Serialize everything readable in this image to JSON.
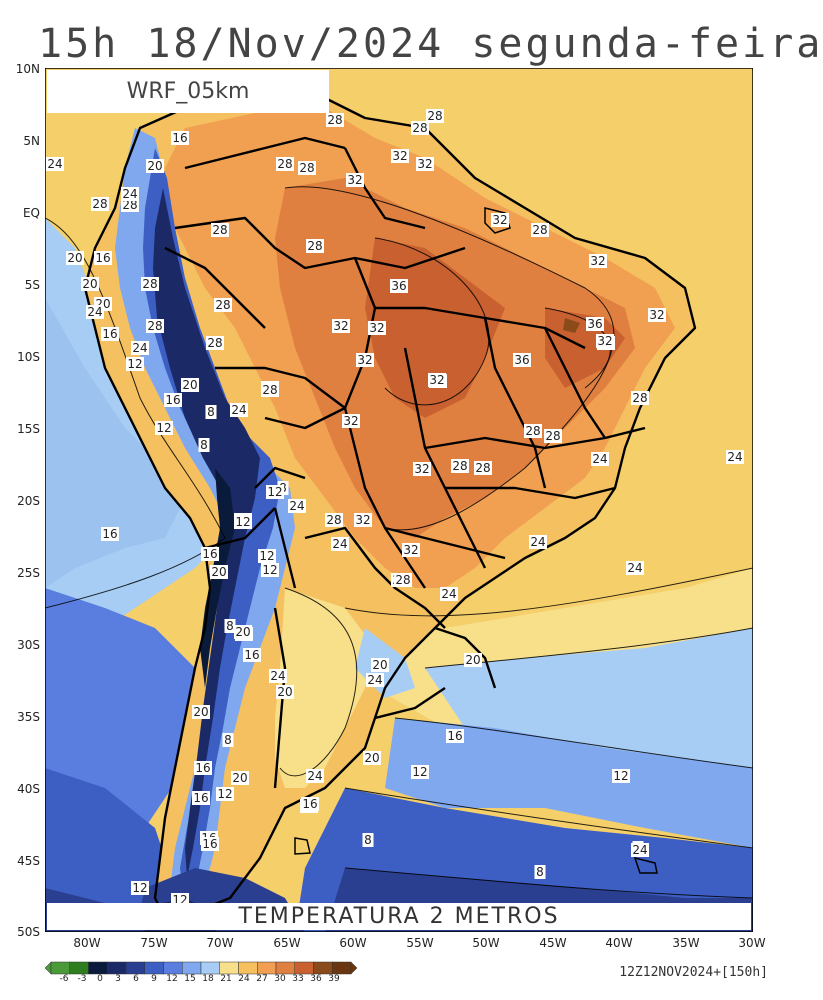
{
  "header": {
    "title": "15h 18/Nov/2024 segunda-feira"
  },
  "model_label": "WRF_05km",
  "variable_label": "TEMPERATURA 2 METROS",
  "run_info": "12Z12NOV2024+[150h]",
  "axes": {
    "latitudes": [
      "10N",
      "5N",
      "EQ",
      "5S",
      "10S",
      "15S",
      "20S",
      "25S",
      "30S",
      "35S",
      "40S",
      "45S",
      "50S"
    ],
    "longitudes": [
      "80W",
      "75W",
      "70W",
      "65W",
      "60W",
      "55W",
      "50W",
      "45W",
      "40W",
      "35W",
      "30W"
    ]
  },
  "colorbar": {
    "ticks": [
      "-6",
      "-3",
      "0",
      "3",
      "6",
      "9",
      "12",
      "15",
      "18",
      "21",
      "24",
      "27",
      "30",
      "33",
      "36",
      "39"
    ],
    "colors": [
      "#4a9a3a",
      "#2e7d1e",
      "#0a1a3a",
      "#1b2a66",
      "#2a3f8f",
      "#3d5fc4",
      "#5a7ee0",
      "#7fa8ee",
      "#a7cdf4",
      "#f8e08a",
      "#f5c060",
      "#f0a050",
      "#e08040",
      "#c96030",
      "#8a4a1a",
      "#6a3510"
    ]
  },
  "contour_labels": [
    {
      "t": "28"
    },
    {
      "t": "28"
    },
    {
      "t": "28"
    },
    {
      "t": "16"
    },
    {
      "t": "20"
    },
    {
      "t": "24"
    },
    {
      "t": "28"
    },
    {
      "t": "28"
    },
    {
      "t": "32"
    },
    {
      "t": "32"
    },
    {
      "t": "28"
    },
    {
      "t": "28"
    },
    {
      "t": "32"
    },
    {
      "t": "28"
    },
    {
      "t": "32"
    },
    {
      "t": "28"
    },
    {
      "t": "24"
    },
    {
      "t": "28"
    },
    {
      "t": "20"
    },
    {
      "t": "16"
    },
    {
      "t": "20"
    },
    {
      "t": "28"
    },
    {
      "t": "28"
    },
    {
      "t": "36"
    },
    {
      "t": "32"
    },
    {
      "t": "20"
    },
    {
      "t": "24"
    },
    {
      "t": "28"
    },
    {
      "t": "32"
    },
    {
      "t": "32"
    },
    {
      "t": "36"
    },
    {
      "t": "32"
    },
    {
      "t": "32"
    },
    {
      "t": "16"
    },
    {
      "t": "28"
    },
    {
      "t": "24"
    },
    {
      "t": "32"
    },
    {
      "t": "12"
    },
    {
      "t": "28"
    },
    {
      "t": "32"
    },
    {
      "t": "36"
    },
    {
      "t": "32"
    },
    {
      "t": "20"
    },
    {
      "t": "28"
    },
    {
      "t": "16"
    },
    {
      "t": "8"
    },
    {
      "t": "24"
    },
    {
      "t": "32"
    },
    {
      "t": "32"
    },
    {
      "t": "28"
    },
    {
      "t": "12"
    },
    {
      "t": "8"
    },
    {
      "t": "28"
    },
    {
      "t": "28"
    },
    {
      "t": "28"
    },
    {
      "t": "24"
    },
    {
      "t": "28"
    },
    {
      "t": "32"
    },
    {
      "t": "24"
    },
    {
      "t": "8"
    },
    {
      "t": "12"
    },
    {
      "t": "12"
    },
    {
      "t": "24"
    },
    {
      "t": "28"
    },
    {
      "t": "32"
    },
    {
      "t": "12"
    },
    {
      "t": "16"
    },
    {
      "t": "24"
    },
    {
      "t": "32"
    },
    {
      "t": "28"
    },
    {
      "t": "24"
    },
    {
      "t": "16"
    },
    {
      "t": "20"
    },
    {
      "t": "12"
    },
    {
      "t": "12"
    },
    {
      "t": "28"
    },
    {
      "t": "24"
    },
    {
      "t": "24"
    },
    {
      "t": "20"
    },
    {
      "t": "8"
    },
    {
      "t": "20"
    },
    {
      "t": "16"
    },
    {
      "t": "20"
    },
    {
      "t": "24"
    },
    {
      "t": "20"
    },
    {
      "t": "24"
    },
    {
      "t": "20"
    },
    {
      "t": "20"
    },
    {
      "t": "16"
    },
    {
      "t": "8"
    },
    {
      "t": "12"
    },
    {
      "t": "16"
    },
    {
      "t": "20"
    },
    {
      "t": "24"
    },
    {
      "t": "20"
    },
    {
      "t": "12"
    },
    {
      "t": "12"
    },
    {
      "t": "16"
    },
    {
      "t": "16"
    },
    {
      "t": "12"
    },
    {
      "t": "16"
    },
    {
      "t": "16"
    },
    {
      "t": "8"
    },
    {
      "t": "8"
    },
    {
      "t": "8"
    },
    {
      "t": "12"
    },
    {
      "t": "12"
    },
    {
      "t": "24"
    },
    {
      "t": "24"
    }
  ]
}
